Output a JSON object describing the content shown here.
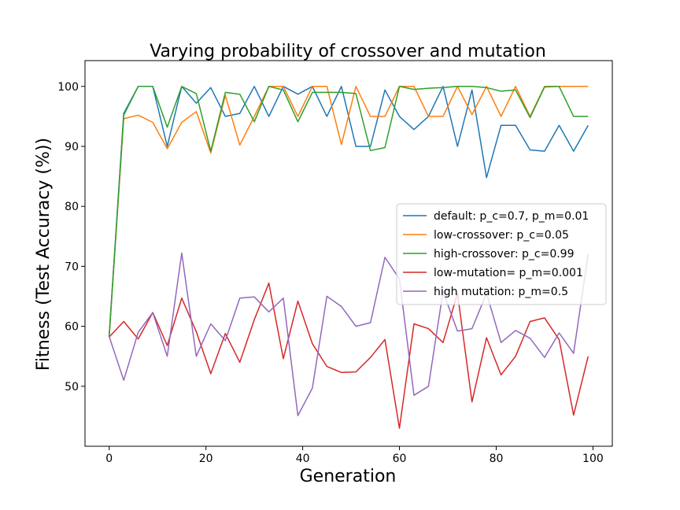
{
  "chart_data": {
    "type": "line",
    "title": "Varying probability of crossover and mutation",
    "xlabel": "Generation",
    "ylabel": "Fitness (Test Accuracy (%))",
    "xlim": [
      -5,
      104
    ],
    "ylim": [
      40,
      104.3
    ],
    "xticks": [
      0,
      20,
      40,
      60,
      80,
      100
    ],
    "yticks": [
      50,
      60,
      70,
      80,
      90,
      100
    ],
    "grid": false,
    "legend_position": "center-right",
    "x": [
      0,
      3,
      6,
      9,
      12,
      15,
      18,
      21,
      24,
      27,
      30,
      33,
      36,
      39,
      42,
      45,
      48,
      51,
      54,
      57,
      60,
      63,
      66,
      69,
      72,
      75,
      78,
      81,
      84,
      87,
      90,
      93,
      96,
      99
    ],
    "series": [
      {
        "name": "default: p_c=0.7, p_m=0.01",
        "color": "#1f77b4",
        "values": [
          58.5,
          95.5,
          100,
          100,
          90,
          100,
          97.2,
          99.8,
          95,
          95.5,
          100,
          95,
          100,
          98.7,
          100,
          95,
          100,
          90,
          90,
          99.4,
          95,
          92.8,
          95,
          100,
          90,
          99.4,
          84.8,
          93.5,
          93.5,
          89.4,
          89.2,
          93.5,
          89.2,
          93.5
        ]
      },
      {
        "name": "low-crossover: p_c=0.05",
        "color": "#ff7f0e",
        "values": [
          58.3,
          94.6,
          95.2,
          94,
          89.6,
          94,
          95.8,
          88.9,
          98.5,
          90.2,
          95,
          100,
          100,
          95,
          100,
          100,
          90.3,
          100,
          95,
          95,
          100,
          100,
          95,
          95,
          100,
          95.3,
          100,
          95,
          100,
          95,
          100,
          100,
          100,
          100
        ]
      },
      {
        "name": "high-crossover: p_c=0.99",
        "color": "#2ca02c",
        "values": [
          58.2,
          95.2,
          100,
          100,
          93.2,
          100,
          98.8,
          89.2,
          99,
          98.7,
          94.1,
          100,
          99.4,
          94.1,
          99,
          99,
          99,
          98.8,
          89.3,
          89.8,
          100,
          99.5,
          99.7,
          99.8,
          100,
          100,
          99.8,
          99.2,
          99.4,
          94.8,
          99.9,
          100,
          95,
          95
        ]
      },
      {
        "name": "low-mutation= p_m=0.001",
        "color": "#d62728",
        "values": [
          58.2,
          60.8,
          57.9,
          62.3,
          56.8,
          64.7,
          59.1,
          52.1,
          58.8,
          54,
          61.1,
          67.2,
          54.6,
          64.2,
          57.1,
          53.3,
          52.3,
          52.4,
          54.8,
          57.8,
          43,
          60.4,
          59.6,
          57.3,
          65.5,
          47.4,
          58.1,
          51.9,
          55,
          60.8,
          61.4,
          57.8,
          45.2,
          55
        ]
      },
      {
        "name": "high mutation: p_m=0.5",
        "color": "#9467bd",
        "values": [
          58.3,
          51,
          59,
          62.3,
          55,
          72.2,
          55,
          60.4,
          57.6,
          64.7,
          64.9,
          62.4,
          64.7,
          45.1,
          49.7,
          65,
          63.3,
          60,
          60.6,
          71.5,
          67.9,
          48.5,
          50,
          65.8,
          59.2,
          59.6,
          65.5,
          57.3,
          59.3,
          58,
          54.8,
          58.9,
          55.5,
          72
        ]
      }
    ]
  }
}
